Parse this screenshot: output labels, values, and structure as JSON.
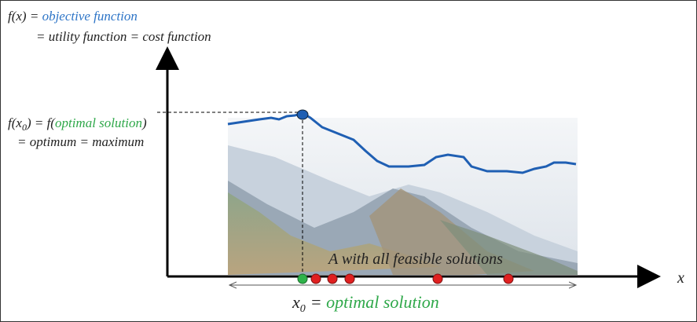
{
  "objective": {
    "lhs": "f(x) =",
    "name": "objective function",
    "synonyms": "= utility function = cost function"
  },
  "optimum": {
    "lhs_f": "f(x",
    "lhs_sub": "0",
    "lhs_rest": ") = f(",
    "name": "optimal solution",
    "close": ")",
    "synonyms": "= optimum = maximum"
  },
  "axis_label": "x",
  "feasible_set": "A with all feasible solutions",
  "solution": {
    "x": "x",
    "sub": "0",
    "eq": "=",
    "name": "optimal solution"
  }
}
